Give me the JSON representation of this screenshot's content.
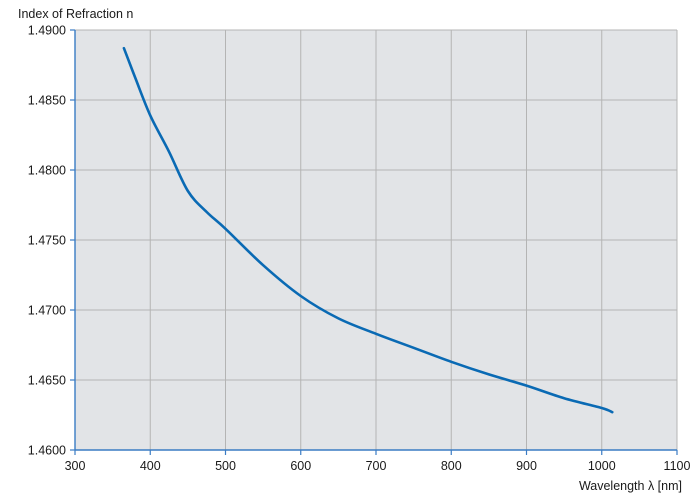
{
  "chart_data": {
    "type": "line",
    "title": "",
    "ylabel": "Index of Refraction n",
    "xlabel": "Wavelength λ [nm]",
    "xlim": [
      300,
      1100
    ],
    "ylim": [
      1.46,
      1.49
    ],
    "xticks": [
      300,
      400,
      500,
      600,
      700,
      800,
      900,
      1000,
      1100
    ],
    "xtick_labels": [
      "300",
      "400",
      "500",
      "600",
      "700",
      "800",
      "900",
      "1000",
      "1100"
    ],
    "yticks": [
      1.46,
      1.465,
      1.47,
      1.475,
      1.48,
      1.485,
      1.49
    ],
    "ytick_labels": [
      "1.4600",
      "1.4650",
      "1.4700",
      "1.4750",
      "1.4800",
      "1.4850",
      "1.4900"
    ],
    "grid": true,
    "colors": {
      "plot_background": "#e2e4e7",
      "grid": "#b4b4b4",
      "axis": "#3a7cc4",
      "series": "#0a6ab4"
    },
    "series": [
      {
        "x": [
          365,
          380,
          400,
          425,
          450,
          475,
          500,
          550,
          600,
          650,
          700,
          750,
          800,
          850,
          900,
          950,
          1000,
          1014
        ],
        "y": [
          1.4887,
          1.4866,
          1.4839,
          1.4813,
          1.4785,
          1.477,
          1.4758,
          1.4732,
          1.471,
          1.4694,
          1.4683,
          1.4673,
          1.4663,
          1.4654,
          1.4646,
          1.4637,
          1.463,
          1.4627
        ]
      }
    ]
  }
}
